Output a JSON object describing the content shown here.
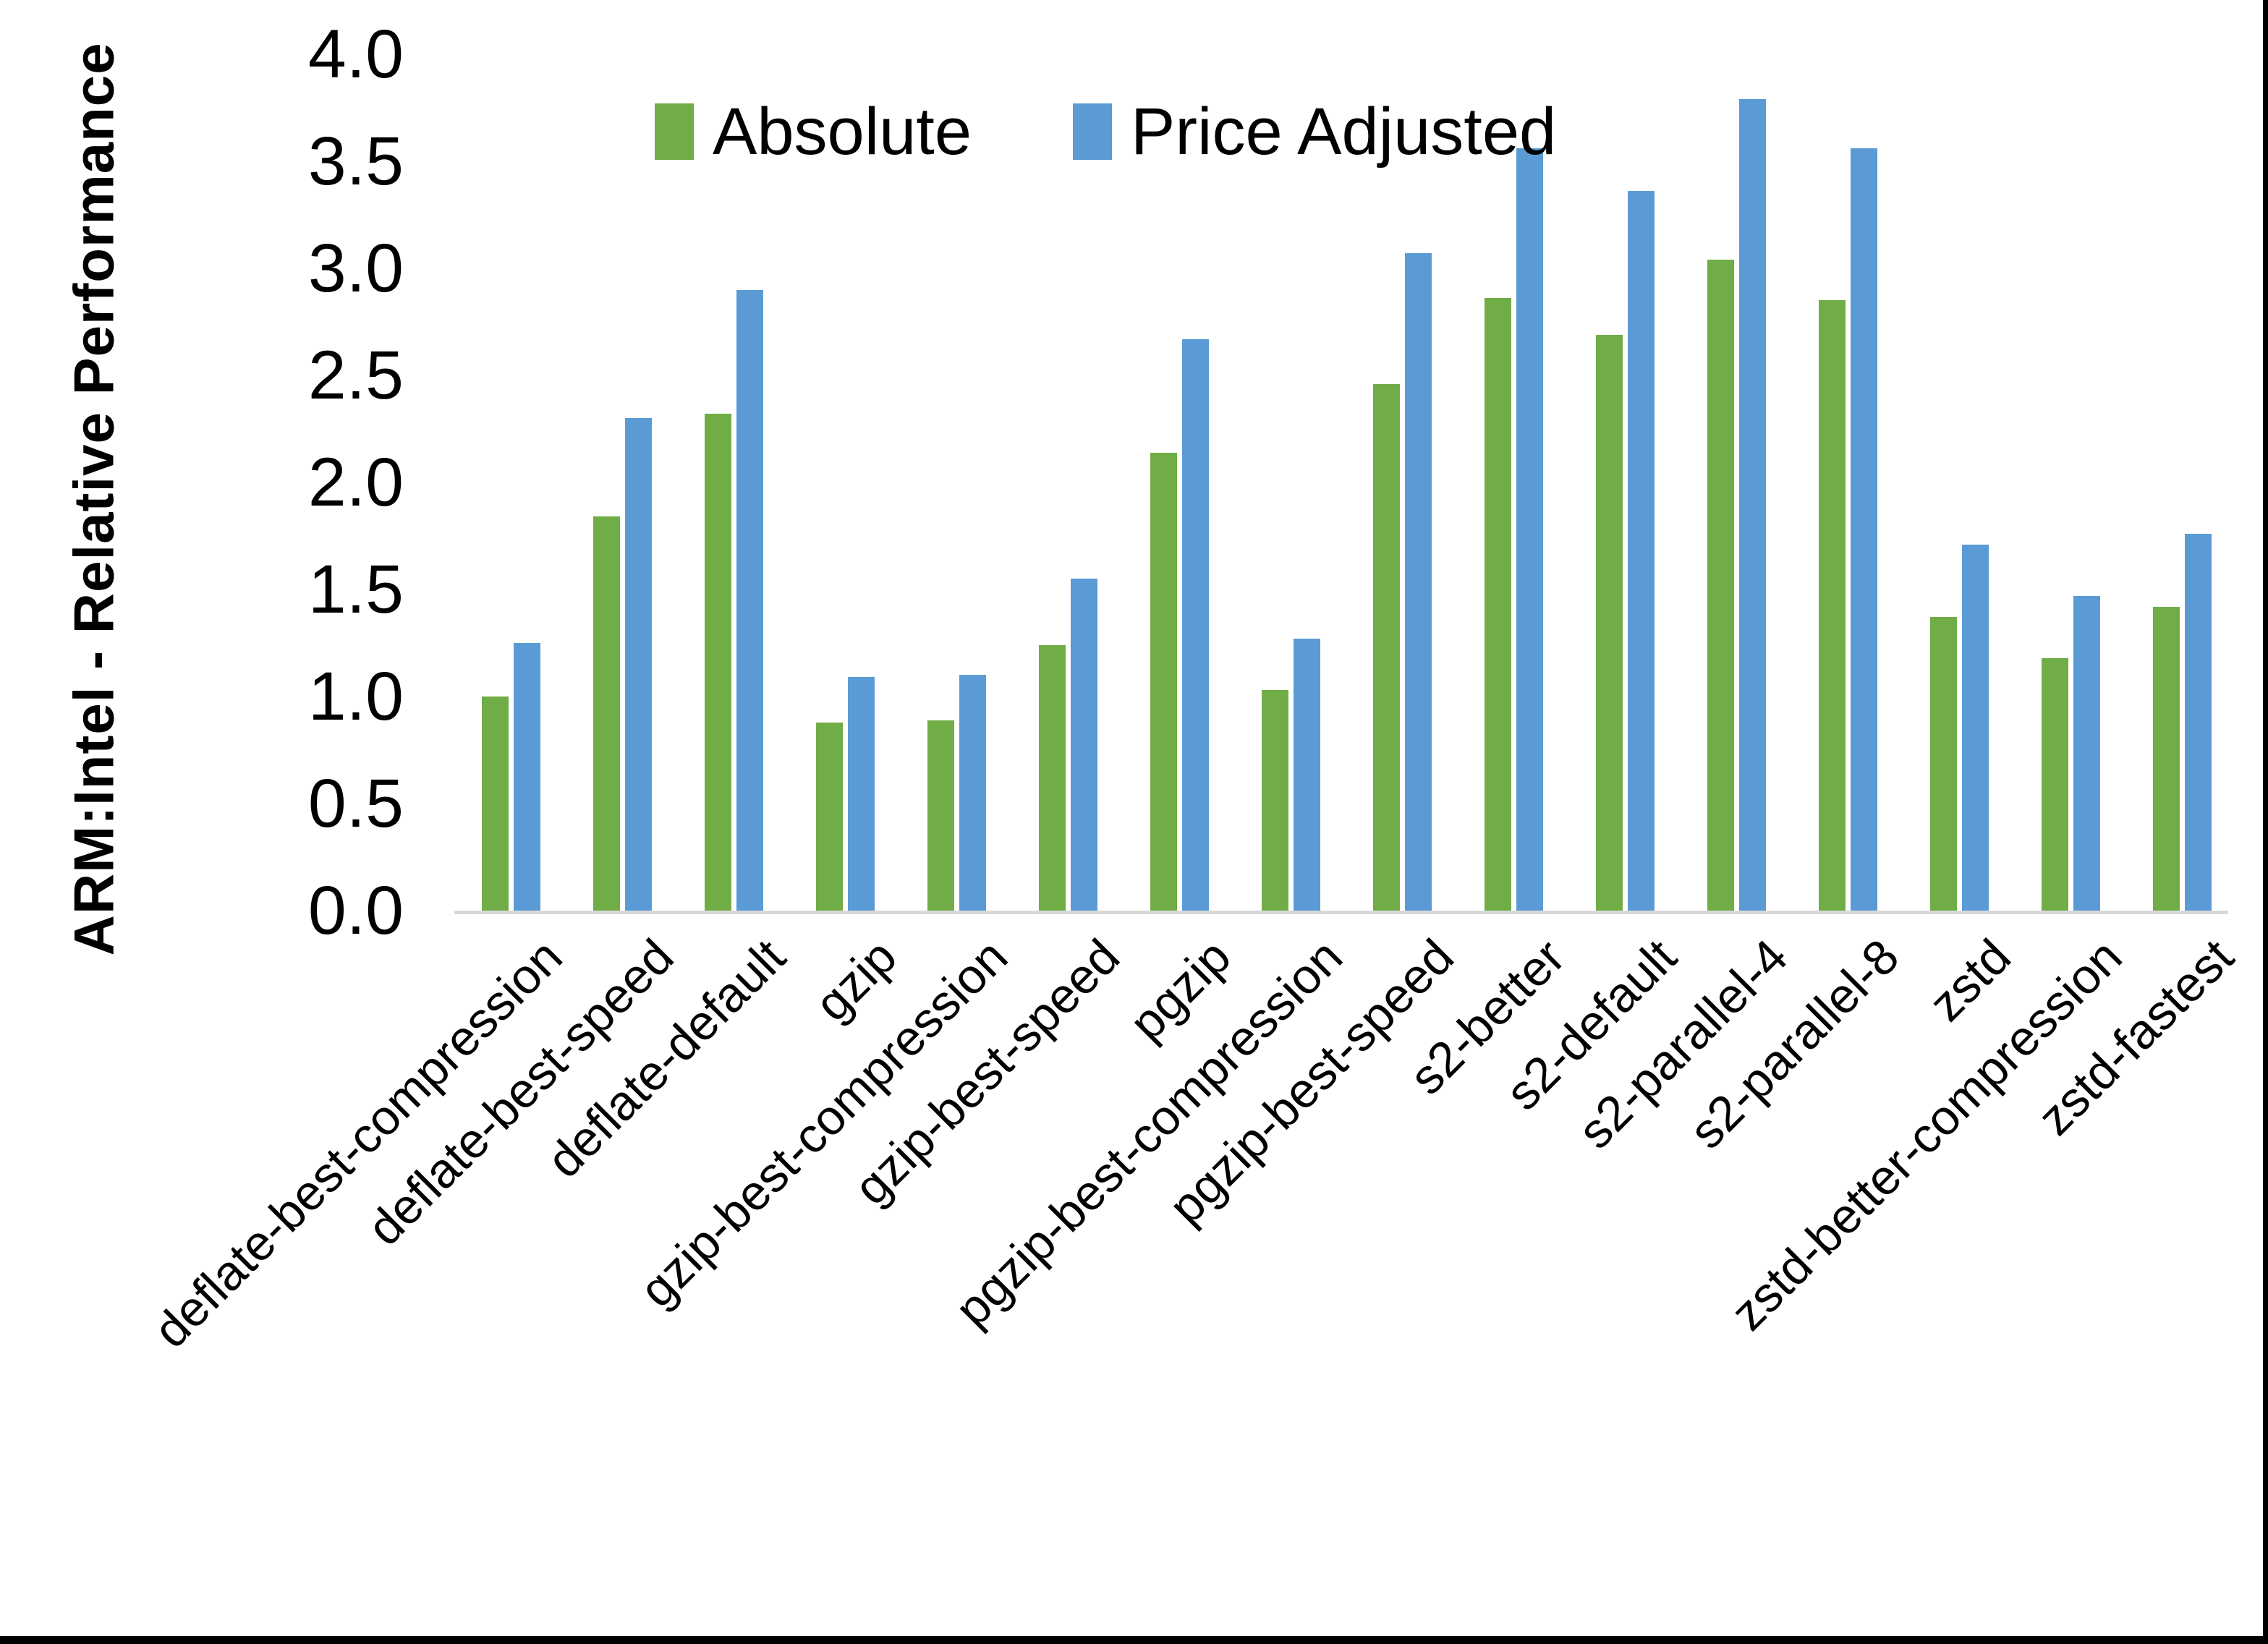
{
  "chart_data": {
    "type": "bar",
    "title": "",
    "xlabel": "",
    "ylabel": "ARM:Intel - Relative Performance",
    "ylim": [
      0,
      4
    ],
    "ytick_step": 0.5,
    "ytick_labels": [
      "0.0",
      "0.5",
      "1.0",
      "1.5",
      "2.0",
      "2.5",
      "3.0",
      "3.5",
      "4.0"
    ],
    "grid": false,
    "legend_position": "top-left-of-center",
    "categories": [
      "deflate-best-compression",
      "deflate-best-speed",
      "deflate-default",
      "gzip",
      "gzip-best-compression",
      "gzip-best-speed",
      "pgzip",
      "pgzip-best-compression",
      "pgzip-best-speed",
      "s2-better",
      "s2-default",
      "s2-parallel-4",
      "s2-parallel-8",
      "zstd",
      "zstd-better-compression",
      "zstd-fastest"
    ],
    "series": [
      {
        "name": "Absolute",
        "color": "#70AD47",
        "values": [
          1.0,
          1.84,
          2.32,
          0.88,
          0.89,
          1.24,
          2.14,
          1.03,
          2.46,
          2.86,
          2.69,
          3.04,
          2.85,
          1.37,
          1.18,
          1.42
        ]
      },
      {
        "name": "Price Adjusted",
        "color": "#5B9BD5",
        "values": [
          1.25,
          2.3,
          2.9,
          1.09,
          1.1,
          1.55,
          2.67,
          1.27,
          3.07,
          3.56,
          3.36,
          3.79,
          3.56,
          1.71,
          1.47,
          1.76
        ]
      }
    ]
  },
  "colors": {
    "background": "#FFFFFF",
    "axis_line": "#D9D9D9",
    "text": "#000000",
    "frame": "#000000"
  }
}
